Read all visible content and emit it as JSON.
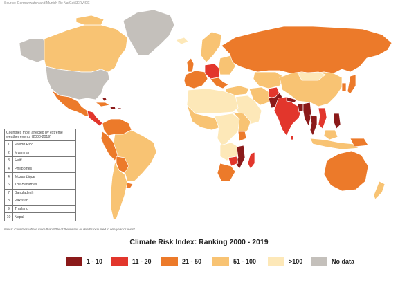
{
  "source_text": "Source: Germanwatch and Munich Re NatCatSERVICE",
  "colors": {
    "r1_10": "#8b1a1a",
    "r11_20": "#e2362c",
    "r21_50": "#ec7a2a",
    "r51_100": "#f8c373",
    "r100plus": "#fde8b8",
    "nodata": "#c4c0bb"
  },
  "table": {
    "header": "Countries most affected by extreme weather events (2000-2019)",
    "rows": [
      {
        "rank": "1",
        "country": "Puerto Rico"
      },
      {
        "rank": "2",
        "country": "Myanmar"
      },
      {
        "rank": "3",
        "country": "Haiti"
      },
      {
        "rank": "4",
        "country": "Philippines"
      },
      {
        "rank": "4",
        "country": "Mozambique"
      },
      {
        "rank": "6",
        "country": "The Bahamas"
      },
      {
        "rank": "7",
        "country": "Bangladesh"
      },
      {
        "rank": "8",
        "country": "Pakistan"
      },
      {
        "rank": "9",
        "country": "Thailand"
      },
      {
        "rank": "10",
        "country": "Nepal"
      }
    ]
  },
  "note": "Italics: Countries where more than 90% of the losses or deaths occurred in one year or event",
  "legend": {
    "title": "Climate Risk Index: Ranking 2000 - 2019",
    "items": [
      {
        "label": "1 - 10",
        "color": "#8b1a1a"
      },
      {
        "label": "11 - 20",
        "color": "#e2362c"
      },
      {
        "label": "21 - 50",
        "color": "#ec7a2a"
      },
      {
        "label": "51 - 100",
        "color": "#f8c373"
      },
      {
        "label": ">100",
        "color": "#fde8b8"
      },
      {
        "label": "No data",
        "color": "#c4c0bb"
      }
    ]
  }
}
